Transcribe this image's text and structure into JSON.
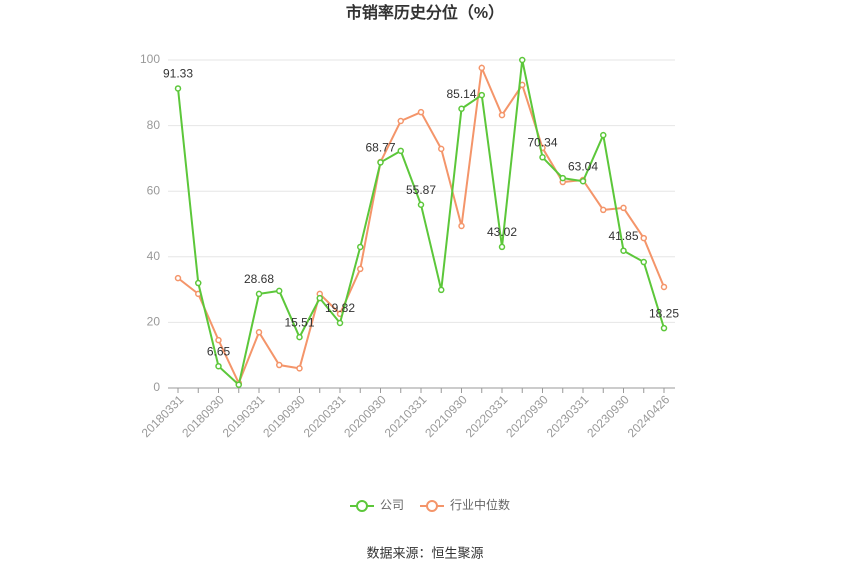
{
  "chart_data": {
    "type": "line",
    "title": "市销率历史分位（%）",
    "source": "数据来源：恒生聚源",
    "categories": [
      "20180331",
      null,
      "20180930",
      null,
      "20190331",
      null,
      "20190930",
      null,
      "20200331",
      null,
      "20200930",
      null,
      "20210331",
      null,
      "20210930",
      null,
      "20220331",
      null,
      "20220930",
      null,
      "20230331",
      null,
      "20230930",
      null,
      "20240426"
    ],
    "series": [
      {
        "name": "公司",
        "color": "#5cc73a",
        "values": [
          91.33,
          32,
          6.65,
          1,
          28.68,
          29.6,
          15.51,
          27.4,
          19.82,
          43,
          68.77,
          72.3,
          55.87,
          29.9,
          85.14,
          89.3,
          43.02,
          100,
          70.34,
          64,
          63.04,
          77.1,
          41.85,
          38.4,
          18.25
        ],
        "value_labels": [
          "91.33",
          null,
          "6.65",
          null,
          "28.68",
          null,
          "15.51",
          null,
          "19.82",
          null,
          "68.77",
          null,
          "55.87",
          null,
          "85.14",
          null,
          "43.02",
          null,
          "70.34",
          null,
          "63.04",
          null,
          "41.85",
          null,
          "18.25"
        ]
      },
      {
        "name": "行业中位数",
        "color": "#f4956a",
        "values": [
          33.5,
          28.7,
          14.6,
          1.5,
          17,
          7,
          6,
          28.7,
          22.6,
          36.3,
          68.9,
          81.4,
          84.1,
          72.9,
          49.4,
          97.6,
          83.2,
          92.4,
          73.2,
          62.8,
          63.4,
          54.3,
          54.9,
          45.7,
          30.8
        ]
      }
    ],
    "ylim": [
      0,
      100
    ],
    "yticks": [
      0,
      20,
      40,
      60,
      80,
      100
    ],
    "grid": true
  }
}
